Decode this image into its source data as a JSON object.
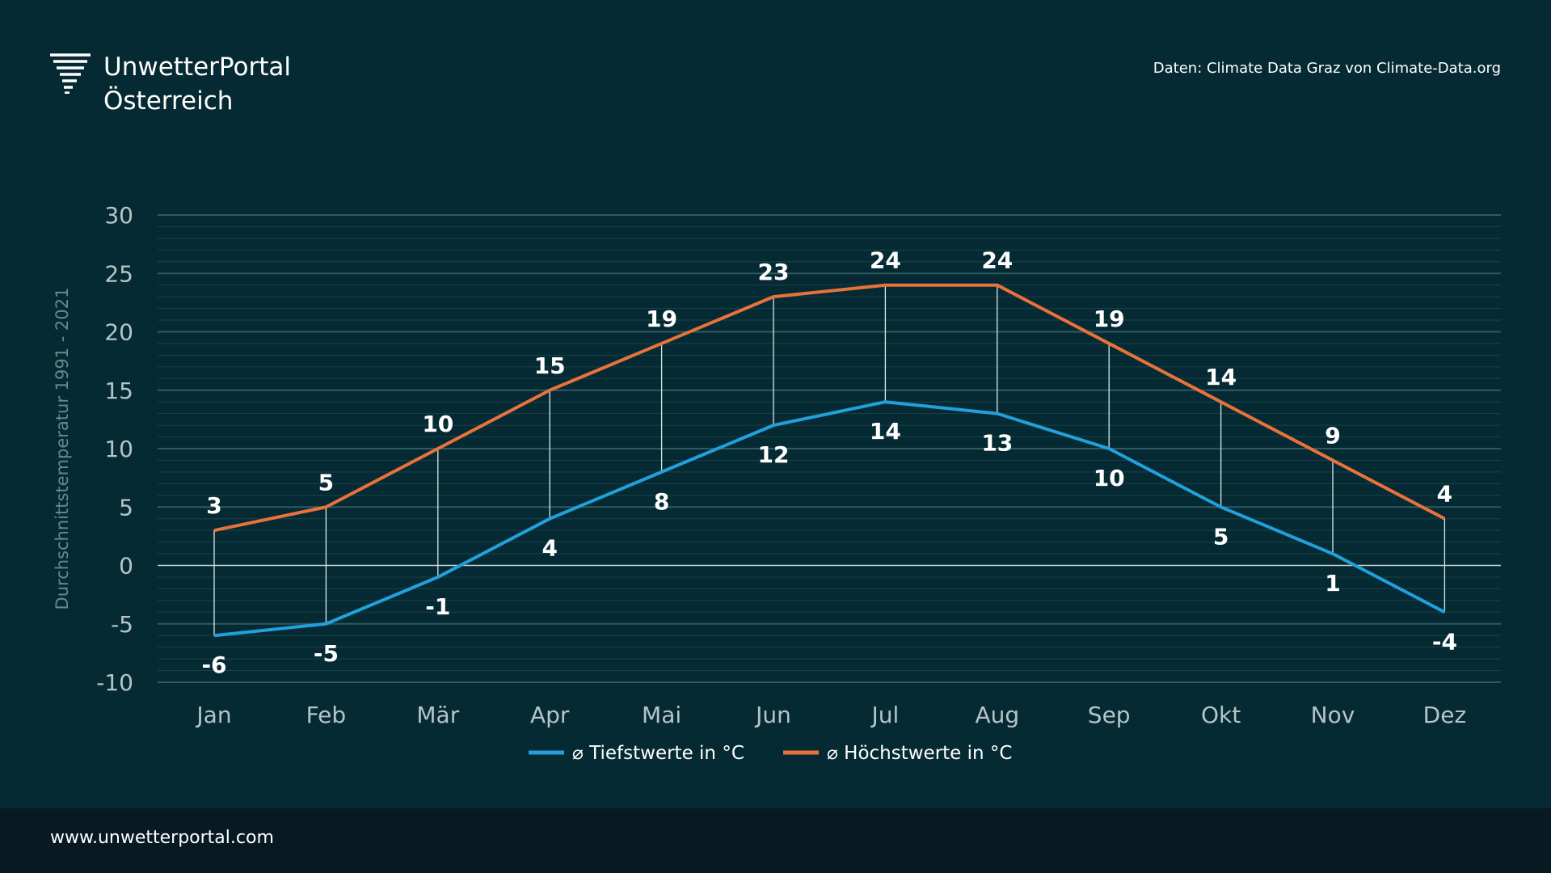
{
  "brand": {
    "line1": "UnwetterPortal",
    "line2": "Österreich",
    "logo_icon": "tornado-icon"
  },
  "source_note": "Daten: Climate Data Graz von Climate-Data.org",
  "footer": {
    "url": "www.unwetterportal.com"
  },
  "colors": {
    "background": "#062a33",
    "footer_bg": "#071a21",
    "low": "#22a0dc",
    "high": "#e8733a",
    "grid": "#2f5a62",
    "tick_text": "#b5c4c8",
    "ylabel_text": "#6b878d"
  },
  "chart_data": {
    "type": "line",
    "categories": [
      "Jan",
      "Feb",
      "Mär",
      "Apr",
      "Mai",
      "Jun",
      "Jul",
      "Aug",
      "Sep",
      "Okt",
      "Nov",
      "Dez"
    ],
    "series": [
      {
        "name": "⌀ Tiefstwerte in °C",
        "values": [
          -6,
          -5,
          -1,
          4,
          8,
          12,
          14,
          13,
          10,
          5,
          1,
          -4
        ]
      },
      {
        "name": "⌀ Höchstwerte in °C",
        "values": [
          3,
          5,
          10,
          15,
          19,
          23,
          24,
          24,
          19,
          14,
          9,
          4
        ]
      }
    ],
    "ylabel": "Durchschnittstemperatur 1991 - 2021",
    "xlabel": "",
    "ylim": [
      -10,
      30
    ],
    "yticks": [
      30,
      25,
      20,
      15,
      10,
      5,
      0,
      -5,
      -10
    ],
    "grid": true,
    "legend": "bottom-center"
  }
}
